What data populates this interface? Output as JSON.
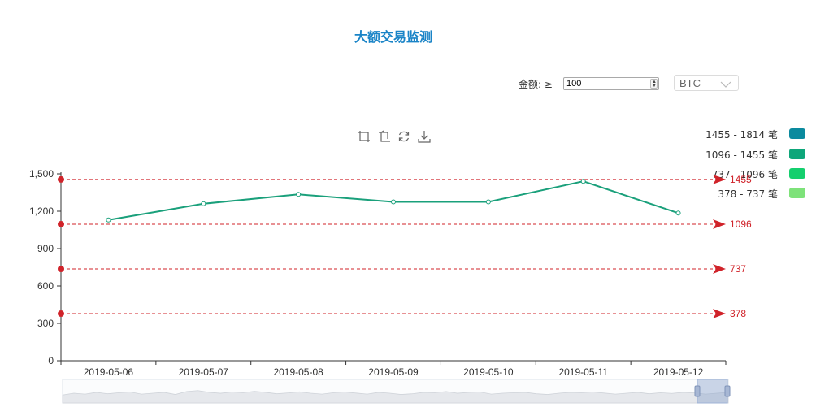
{
  "title": "大额交易监测",
  "filter": {
    "label": "金额: ≥",
    "value": "100",
    "currency": "BTC"
  },
  "toolbox": [
    "zoom-icon",
    "zoom-reset-icon",
    "restore-icon",
    "save-image-icon"
  ],
  "legend": [
    {
      "label": "1455 - 1814 笔",
      "color": "#0b8a9e"
    },
    {
      "label": "1096 - 1455 笔",
      "color": "#0ea67a"
    },
    {
      "label": "737 - 1096 笔",
      "color": "#14cf6e"
    },
    {
      "label": "378 - 737 笔",
      "color": "#7ee27a"
    }
  ],
  "chart_data": {
    "type": "line",
    "title": "大额交易监测",
    "categories": [
      "2019-05-06",
      "2019-05-07",
      "2019-05-08",
      "2019-05-09",
      "2019-05-10",
      "2019-05-11",
      "2019-05-12"
    ],
    "series": [
      {
        "values": [
          1130,
          1260,
          1335,
          1275,
          1275,
          1440,
          1185
        ],
        "color": "#1aa07b"
      }
    ],
    "ylim": [
      0,
      1500
    ],
    "yticks": [
      0,
      300,
      600,
      900,
      1200,
      1500
    ],
    "ytick_labels": [
      "0",
      "300",
      "600",
      "900",
      "1,200",
      "1,500"
    ],
    "mark_lines": [
      {
        "value": 1455,
        "label": "1455"
      },
      {
        "value": 1096,
        "label": "1096"
      },
      {
        "value": 737,
        "label": "737"
      },
      {
        "value": 378,
        "label": "378"
      }
    ],
    "mark_line_color": "#d0232a",
    "data_zoom": true
  }
}
